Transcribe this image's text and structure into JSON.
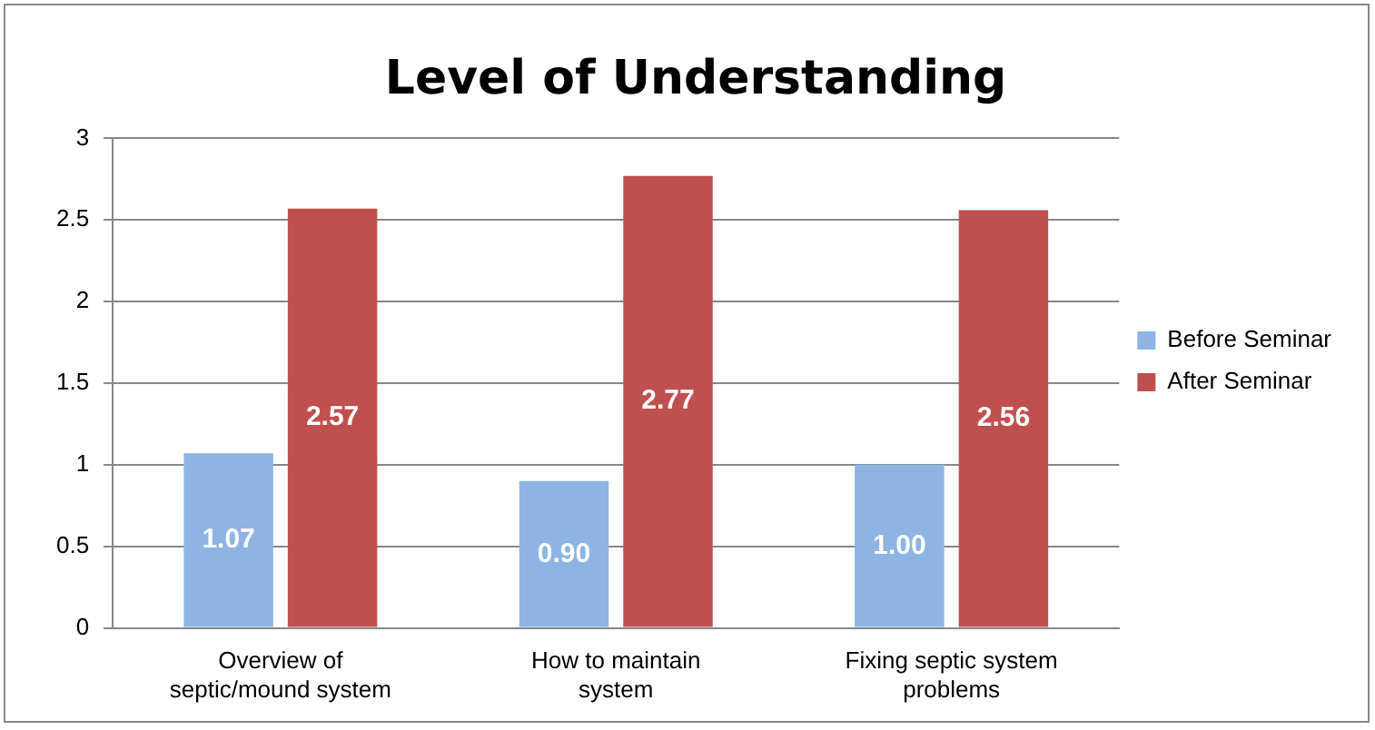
{
  "chart_data": {
    "type": "bar",
    "title": "Level of Understanding",
    "categories": [
      "Overview of septic/mound system",
      "How to maintain system",
      "Fixing septic system problems"
    ],
    "series": [
      {
        "name": "Before Seminar",
        "color": "#8eb4e3",
        "values": [
          1.07,
          0.9,
          1.0
        ],
        "value_labels": [
          "1.07",
          "0.90",
          "1.00"
        ]
      },
      {
        "name": "After Seminar",
        "color": "#c0504d",
        "values": [
          2.57,
          2.77,
          2.56
        ],
        "value_labels": [
          "2.57",
          "2.77",
          "2.56"
        ]
      }
    ],
    "ylim": [
      0,
      3
    ],
    "yticks": [
      0,
      0.5,
      1,
      1.5,
      2,
      2.5,
      3
    ],
    "grid": "y",
    "legend": "right"
  }
}
